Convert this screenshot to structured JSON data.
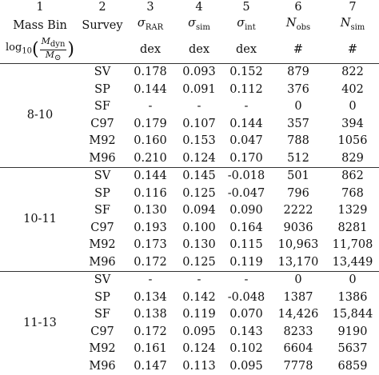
{
  "header": {
    "col_numbers": [
      "1",
      "2",
      "3",
      "4",
      "5",
      "6",
      "7"
    ],
    "col_names": [
      "Mass Bin",
      "Survey",
      "σ",
      "σ",
      "σ",
      "N",
      "N"
    ],
    "col_subs": [
      "",
      "",
      "RAR",
      "sim",
      "int",
      "obs",
      "sim"
    ],
    "units": [
      "",
      "",
      "dex",
      "dex",
      "dex",
      "#",
      "#"
    ],
    "massbin_formula": {
      "log": "log",
      "log_sub": "10",
      "num": "M",
      "num_sub": "dyn",
      "den": "M",
      "den_sub": "⊙"
    }
  },
  "groups": [
    {
      "mass_bin": "8-10",
      "rows": [
        {
          "survey": "SV",
          "rar": "0.178",
          "sim": "0.093",
          "int": "0.152",
          "nobs": "879",
          "nsim": "822"
        },
        {
          "survey": "SP",
          "rar": "0.144",
          "sim": "0.091",
          "int": "0.112",
          "nobs": "376",
          "nsim": "402"
        },
        {
          "survey": "SF",
          "rar": "-",
          "sim": "-",
          "int": "-",
          "nobs": "0",
          "nsim": "0"
        },
        {
          "survey": "C97",
          "rar": "0.179",
          "sim": "0.107",
          "int": "0.144",
          "nobs": "357",
          "nsim": "394"
        },
        {
          "survey": "M92",
          "rar": "0.160",
          "sim": "0.153",
          "int": "0.047",
          "nobs": "788",
          "nsim": "1056"
        },
        {
          "survey": "M96",
          "rar": "0.210",
          "sim": "0.124",
          "int": "0.170",
          "nobs": "512",
          "nsim": "829"
        }
      ]
    },
    {
      "mass_bin": "10-11",
      "rows": [
        {
          "survey": "SV",
          "rar": "0.144",
          "sim": "0.145",
          "int": "-0.018",
          "nobs": "501",
          "nsim": "862"
        },
        {
          "survey": "SP",
          "rar": "0.116",
          "sim": "0.125",
          "int": "-0.047",
          "nobs": "796",
          "nsim": "768"
        },
        {
          "survey": "SF",
          "rar": "0.130",
          "sim": "0.094",
          "int": "0.090",
          "nobs": "2222",
          "nsim": "1329"
        },
        {
          "survey": "C97",
          "rar": "0.193",
          "sim": "0.100",
          "int": "0.164",
          "nobs": "9036",
          "nsim": "8281"
        },
        {
          "survey": "M92",
          "rar": "0.173",
          "sim": "0.130",
          "int": "0.115",
          "nobs": "10,963",
          "nsim": "11,708"
        },
        {
          "survey": "M96",
          "rar": "0.172",
          "sim": "0.125",
          "int": "0.119",
          "nobs": "13,170",
          "nsim": "13,449"
        }
      ]
    },
    {
      "mass_bin": "11-13",
      "rows": [
        {
          "survey": "SV",
          "rar": "-",
          "sim": "-",
          "int": "-",
          "nobs": "0",
          "nsim": "0"
        },
        {
          "survey": "SP",
          "rar": "0.134",
          "sim": "0.142",
          "int": "-0.048",
          "nobs": "1387",
          "nsim": "1386"
        },
        {
          "survey": "SF",
          "rar": "0.138",
          "sim": "0.119",
          "int": "0.070",
          "nobs": "14,426",
          "nsim": "15,844"
        },
        {
          "survey": "C97",
          "rar": "0.172",
          "sim": "0.095",
          "int": "0.143",
          "nobs": "8233",
          "nsim": "9190"
        },
        {
          "survey": "M92",
          "rar": "0.161",
          "sim": "0.124",
          "int": "0.102",
          "nobs": "6604",
          "nsim": "5637"
        },
        {
          "survey": "M96",
          "rar": "0.147",
          "sim": "0.113",
          "int": "0.095",
          "nobs": "7778",
          "nsim": "6859"
        }
      ]
    }
  ]
}
